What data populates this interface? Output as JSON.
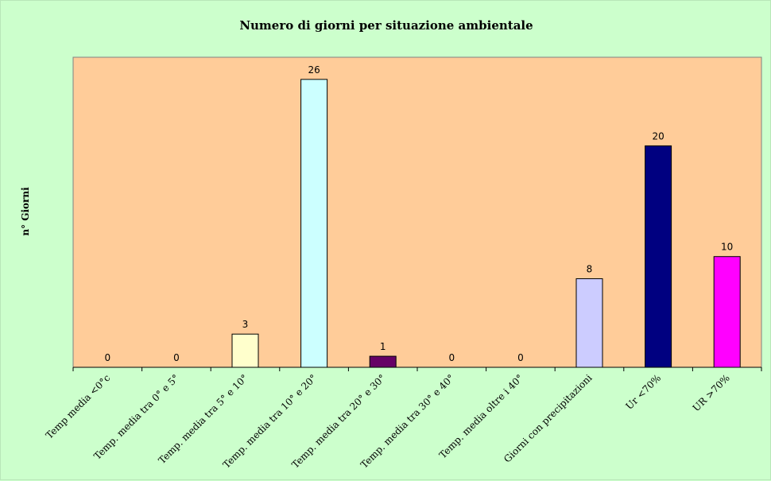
{
  "chart_data": {
    "type": "bar",
    "title": "Numero di giorni per situazione ambientale",
    "ylabel": "n° Giorni",
    "xlabel": "",
    "ylim": [
      0,
      28
    ],
    "grid": false,
    "categories": [
      "Temp media <0°c",
      "Temp. media tra 0° e 5°",
      "Temp. media tra 5° e 10°",
      "Temp. media tra 10° e 20°",
      "Temp. media tra 20° e 30°",
      "Temp. media tra 30° e 40°",
      "Temp. media oltre i 40°",
      "Giorni con precipitazioni",
      "Ur <70%",
      "UR >70%"
    ],
    "values": [
      0,
      0,
      3,
      26,
      1,
      0,
      0,
      8,
      20,
      10
    ],
    "bar_colors": [
      "#ffffcc",
      "#ffffcc",
      "#ffffcc",
      "#ccffff",
      "#660066",
      "#ffffcc",
      "#ffffcc",
      "#ccccff",
      "#000080",
      "#ff00ff"
    ],
    "plot_background": "#ffcc99",
    "chart_background": "#ccffcc"
  }
}
